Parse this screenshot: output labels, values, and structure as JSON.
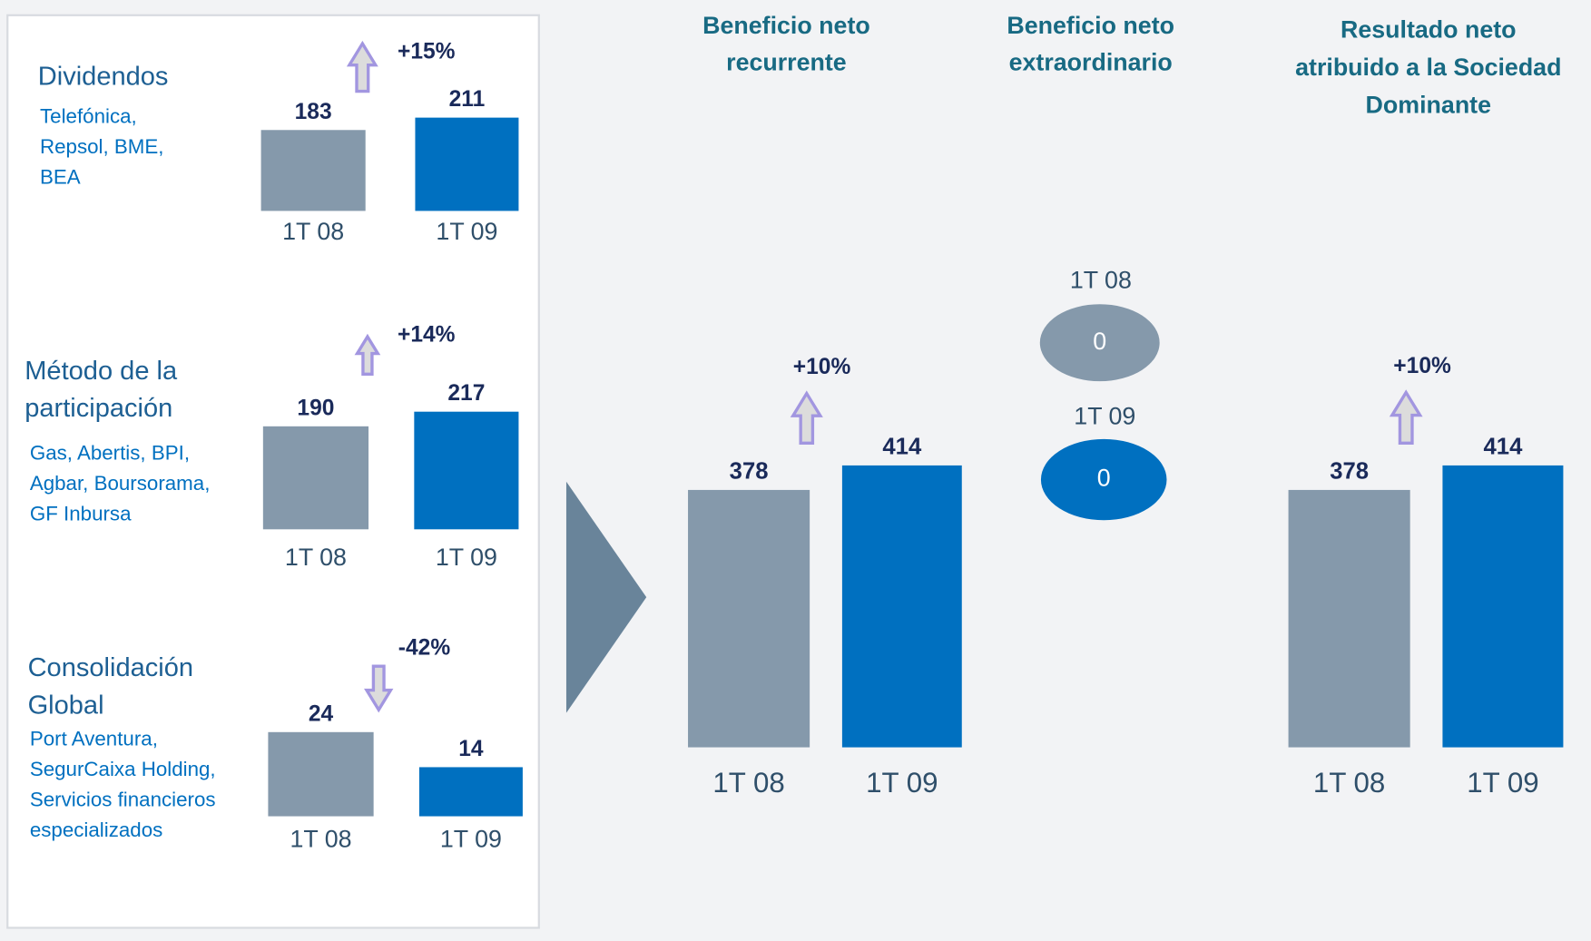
{
  "chart_data": [
    {
      "type": "bar",
      "title": [
        "Dividendos"
      ],
      "subtitle": [
        "Telefónica,",
        "Repsol, BME,",
        "BEA"
      ],
      "categories": [
        "1T 08",
        "1T 09"
      ],
      "values": [
        183,
        211
      ],
      "colors": [
        "#8599ab",
        "#0070c0"
      ],
      "annotation": "+15%"
    },
    {
      "type": "bar",
      "title": [
        "Método de la",
        "participación"
      ],
      "subtitle": [
        "Gas, Abertis, BPI,",
        "Agbar, Boursorama,",
        "GF Inbursa"
      ],
      "categories": [
        "1T 08",
        "1T 09"
      ],
      "values": [
        190,
        217
      ],
      "colors": [
        "#8599ab",
        "#0070c0"
      ],
      "annotation": "+14%"
    },
    {
      "type": "bar",
      "title": [
        "Consolidación",
        "Global"
      ],
      "subtitle": [
        "Port Aventura,",
        "SegurCaixa Holding,",
        "Servicios financieros",
        "especializados"
      ],
      "categories": [
        "1T 08",
        "1T 09"
      ],
      "values": [
        24,
        14
      ],
      "colors": [
        "#8599ab",
        "#0070c0"
      ],
      "annotation": "-42%"
    },
    {
      "type": "bar",
      "title": [
        "Beneficio neto",
        "recurrente"
      ],
      "categories": [
        "1T 08",
        "1T 09"
      ],
      "values": [
        378,
        414
      ],
      "colors": [
        "#8599ab",
        "#0070c0"
      ],
      "annotation": "+10%"
    },
    {
      "type": "ellipse",
      "title": [
        "Beneficio neto",
        "extraordinario"
      ],
      "categories": [
        "1T 08",
        "1T 09"
      ],
      "values": [
        0,
        0
      ],
      "colors": [
        "#8599ab",
        "#0070c0"
      ]
    },
    {
      "type": "bar",
      "title": [
        "Resultado neto",
        "atribuido a la Sociedad",
        "Dominante"
      ],
      "categories": [
        "1T 08",
        "1T 09"
      ],
      "values": [
        378,
        414
      ],
      "colors": [
        "#8599ab",
        "#0070c0"
      ],
      "annotation": "+10%"
    }
  ]
}
